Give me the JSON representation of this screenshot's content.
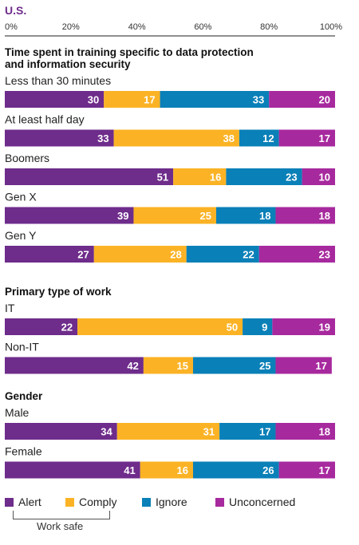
{
  "chart_data": {
    "type": "bar",
    "orientation": "horizontal",
    "stacked": true,
    "title": "U.S.",
    "x_ticks": [
      "0%",
      "20%",
      "40%",
      "60%",
      "80%",
      "100%"
    ],
    "xlim": [
      0,
      100
    ],
    "series_names": [
      "Alert",
      "Comply",
      "Ignore",
      "Unconcerned"
    ],
    "colors": [
      "#6e2c8b",
      "#fbb325",
      "#0a80b8",
      "#a7299e"
    ],
    "sections": [
      {
        "heading": "Time spent in training specific to data protection and information security",
        "bars": [
          {
            "label": "Less than 30 minutes",
            "values": [
              30,
              17,
              33,
              20
            ]
          },
          {
            "label": "At least half day",
            "values": [
              33,
              38,
              12,
              17
            ]
          },
          {
            "label": "Boomers",
            "values": [
              51,
              16,
              23,
              10
            ]
          },
          {
            "label": "Gen X",
            "values": [
              39,
              25,
              18,
              18
            ]
          },
          {
            "label": "Gen Y",
            "values": [
              27,
              28,
              22,
              23
            ]
          }
        ]
      },
      {
        "heading": "Primary type of work",
        "bars": [
          {
            "label": "IT",
            "values": [
              22,
              50,
              9,
              19
            ]
          },
          {
            "label": "Non-IT",
            "values": [
              42,
              15,
              25,
              17
            ]
          }
        ]
      },
      {
        "heading": "Gender",
        "bars": [
          {
            "label": "Male",
            "values": [
              34,
              31,
              17,
              18
            ]
          },
          {
            "label": "Female",
            "values": [
              41,
              16,
              26,
              17
            ]
          }
        ]
      }
    ]
  },
  "legend": {
    "items": [
      {
        "label": "Alert",
        "color": "#6e2c8b"
      },
      {
        "label": "Comply",
        "color": "#fbb325"
      },
      {
        "label": "Ignore",
        "color": "#0a80b8"
      },
      {
        "label": "Unconcerned",
        "color": "#a7299e"
      }
    ],
    "bracket_label": "Work safe"
  }
}
